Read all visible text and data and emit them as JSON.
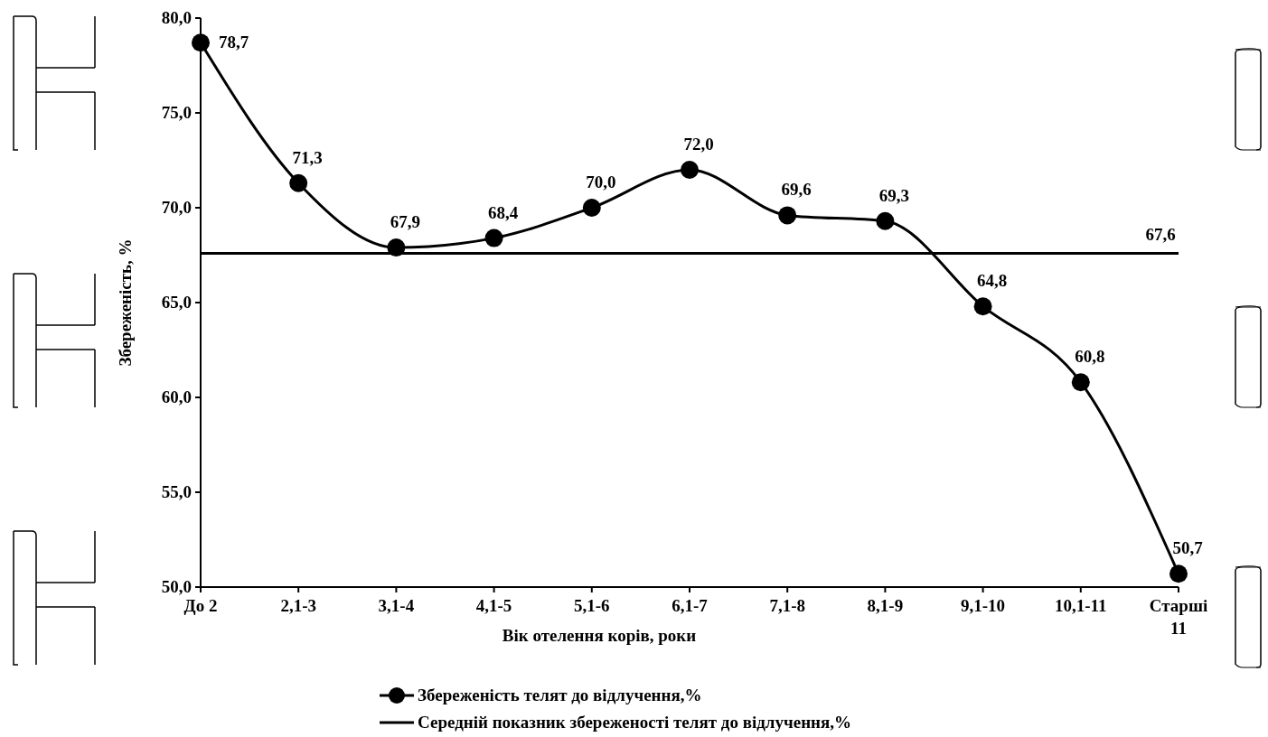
{
  "chart_data": {
    "type": "line",
    "xlabel": "Вік отелення корів, роки",
    "ylabel": "Збереженість, %",
    "categories": [
      "До 2",
      "2,1-3",
      "3,1-4",
      "4,1-5",
      "5,1-6",
      "6,1-7",
      "7,1-8",
      "8,1-9",
      "9,1-10",
      "10,1-11",
      "Старші 11"
    ],
    "series": [
      {
        "name": "Збереженість телят до відлучення,%",
        "color": "#000000",
        "marker": "circle",
        "values": [
          78.7,
          71.3,
          67.9,
          68.4,
          70.0,
          72.0,
          69.6,
          69.3,
          64.8,
          60.8,
          50.7
        ],
        "value_labels": [
          "78,7",
          "71,3",
          "67,9",
          "68,4",
          "70,0",
          "72,0",
          "69,6",
          "69,3",
          "64,8",
          "60,8",
          "50,7"
        ]
      },
      {
        "name": "Середній показник збереженості телят до відлучення,%",
        "color": "#000000",
        "marker": "none",
        "values": [
          67.6,
          67.6,
          67.6,
          67.6,
          67.6,
          67.6,
          67.6,
          67.6,
          67.6,
          67.6,
          67.6
        ],
        "value_labels": [
          null,
          null,
          null,
          null,
          null,
          null,
          null,
          null,
          null,
          null,
          "67,6"
        ]
      }
    ],
    "ylim": [
      50,
      80
    ],
    "yticks": [
      {
        "value": 50,
        "label": "50,0"
      },
      {
        "value": 55,
        "label": "55,0"
      },
      {
        "value": 60,
        "label": "60,0"
      },
      {
        "value": 65,
        "label": "65,0"
      },
      {
        "value": 70,
        "label": "70,0"
      },
      {
        "value": 75,
        "label": "75,0"
      },
      {
        "value": 80,
        "label": "80,0"
      }
    ],
    "grid": false,
    "legend": "bottom"
  }
}
